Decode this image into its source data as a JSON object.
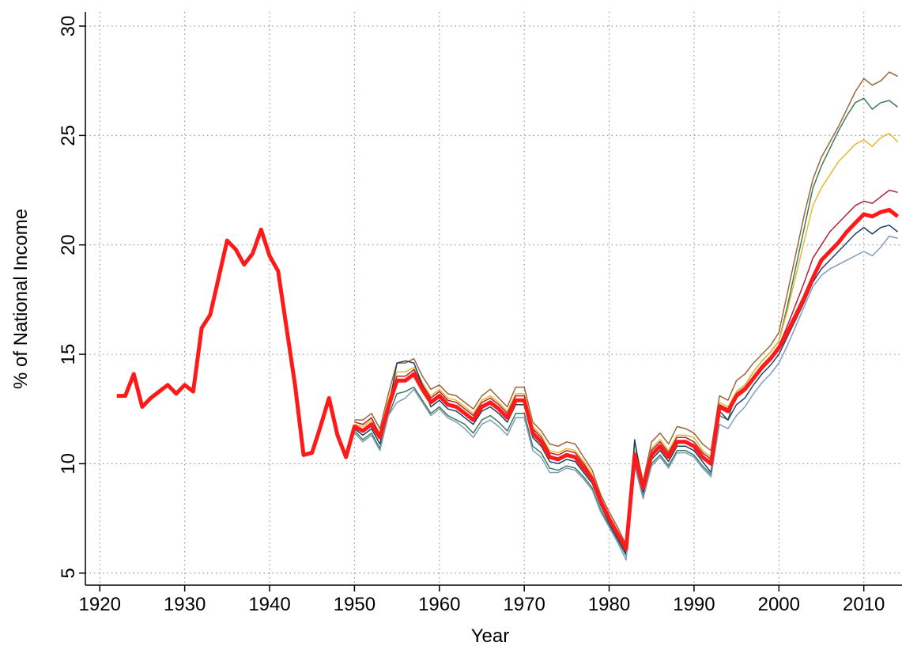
{
  "chart_data": {
    "type": "line",
    "x_label": "Year",
    "y_label": "% of National Income",
    "xlim": [
      1918.3,
      2014.5
    ],
    "ylim": [
      4.45,
      30.65
    ],
    "xticks": [
      1920,
      1930,
      1940,
      1950,
      1960,
      1970,
      1980,
      1990,
      2000,
      2010
    ],
    "yticks": [
      5,
      10,
      15,
      20,
      25,
      30
    ],
    "grid": true,
    "x": [
      1922,
      1923,
      1924,
      1925,
      1926,
      1927,
      1928,
      1929,
      1930,
      1931,
      1932,
      1933,
      1934,
      1935,
      1936,
      1937,
      1938,
      1939,
      1940,
      1941,
      1942,
      1943,
      1944,
      1945,
      1946,
      1947,
      1948,
      1949,
      1950,
      1951,
      1952,
      1953,
      1954,
      1955,
      1956,
      1957,
      1958,
      1959,
      1960,
      1961,
      1962,
      1963,
      1964,
      1965,
      1966,
      1967,
      1968,
      1969,
      1970,
      1971,
      1972,
      1973,
      1974,
      1975,
      1976,
      1977,
      1978,
      1979,
      1980,
      1981,
      1982,
      1983,
      1984,
      1985,
      1986,
      1987,
      1988,
      1989,
      1990,
      1991,
      1992,
      1993,
      1994,
      1995,
      1996,
      1997,
      1998,
      1999,
      2000,
      2001,
      2002,
      2003,
      2004,
      2005,
      2006,
      2007,
      2008,
      2009,
      2010,
      2011,
      2012,
      2013,
      2014
    ],
    "series": [
      {
        "color": "#a0653a",
        "linewidth": 1.5,
        "values": [
          null,
          null,
          null,
          null,
          null,
          null,
          null,
          null,
          null,
          null,
          null,
          null,
          null,
          null,
          null,
          null,
          null,
          null,
          null,
          null,
          null,
          null,
          null,
          null,
          null,
          null,
          null,
          null,
          12.0,
          12.0,
          12.3,
          11.6,
          13.2,
          14.6,
          14.6,
          14.8,
          14.0,
          13.4,
          13.6,
          13.2,
          13.1,
          12.8,
          12.5,
          13.1,
          13.4,
          13.0,
          12.6,
          13.5,
          13.5,
          11.9,
          11.5,
          10.9,
          10.8,
          11.0,
          10.9,
          10.3,
          9.7,
          8.6,
          7.8,
          7.1,
          6.3,
          11.0,
          9.2,
          11.0,
          11.4,
          10.9,
          11.7,
          11.6,
          11.4,
          10.9,
          10.6,
          13.1,
          12.9,
          13.8,
          14.1,
          14.6,
          15.0,
          15.4,
          16.0,
          17.8,
          19.6,
          21.4,
          23.0,
          24.0,
          24.7,
          25.4,
          26.2,
          27.0,
          27.6,
          27.3,
          27.5,
          27.9,
          27.7
        ]
      },
      {
        "color": "#3d7a5a",
        "linewidth": 1.5,
        "values": [
          null,
          null,
          null,
          null,
          null,
          null,
          null,
          null,
          null,
          null,
          null,
          null,
          null,
          null,
          null,
          null,
          null,
          null,
          null,
          null,
          null,
          null,
          null,
          null,
          null,
          null,
          null,
          null,
          11.5,
          11.1,
          11.4,
          10.7,
          12.2,
          13.2,
          13.3,
          13.5,
          12.9,
          12.3,
          12.6,
          12.2,
          12.0,
          11.8,
          11.4,
          12.0,
          12.2,
          11.9,
          11.5,
          12.3,
          12.3,
          10.8,
          10.5,
          9.8,
          9.7,
          9.9,
          9.8,
          9.4,
          8.9,
          7.9,
          7.2,
          6.5,
          5.8,
          10.0,
          8.5,
          10.0,
          10.4,
          9.9,
          10.6,
          10.6,
          10.4,
          9.9,
          9.5,
          12.2,
          12.0,
          13.3,
          13.6,
          14.2,
          14.7,
          15.1,
          15.6,
          17.2,
          19.0,
          20.8,
          22.6,
          23.6,
          24.4,
          25.2,
          25.9,
          26.5,
          26.7,
          26.2,
          26.5,
          26.6,
          26.3
        ]
      },
      {
        "color": "#e8b830",
        "linewidth": 1.5,
        "values": [
          null,
          null,
          null,
          null,
          null,
          null,
          null,
          null,
          null,
          null,
          null,
          null,
          null,
          null,
          null,
          null,
          null,
          null,
          null,
          null,
          null,
          null,
          null,
          null,
          null,
          null,
          null,
          null,
          11.8,
          11.7,
          12.0,
          11.4,
          12.9,
          14.2,
          14.2,
          14.4,
          13.7,
          13.1,
          13.4,
          13.0,
          12.9,
          12.6,
          12.3,
          12.9,
          13.1,
          12.8,
          12.4,
          13.2,
          13.2,
          11.7,
          11.3,
          10.6,
          10.5,
          10.7,
          10.6,
          10.1,
          9.5,
          8.4,
          7.6,
          6.9,
          6.2,
          10.6,
          9.0,
          10.7,
          11.1,
          10.6,
          11.3,
          11.3,
          11.2,
          10.6,
          10.3,
          12.8,
          12.6,
          13.3,
          13.6,
          14.2,
          14.7,
          15.1,
          15.6,
          17.0,
          18.6,
          20.2,
          21.8,
          22.6,
          23.2,
          23.8,
          24.2,
          24.6,
          24.8,
          24.5,
          24.9,
          25.1,
          24.7
        ]
      },
      {
        "color": "#b22234",
        "linewidth": 1.5,
        "values": [
          null,
          null,
          null,
          null,
          null,
          null,
          null,
          null,
          null,
          null,
          null,
          null,
          null,
          null,
          null,
          null,
          null,
          null,
          null,
          null,
          null,
          null,
          null,
          null,
          null,
          null,
          null,
          null,
          11.9,
          11.8,
          12.1,
          11.3,
          12.8,
          14.0,
          14.0,
          14.3,
          13.6,
          13.0,
          13.3,
          12.9,
          12.8,
          12.5,
          12.2,
          12.8,
          13.0,
          12.7,
          12.3,
          13.1,
          13.1,
          11.6,
          11.2,
          10.5,
          10.4,
          10.6,
          10.5,
          10.0,
          9.4,
          8.4,
          7.6,
          6.9,
          6.2,
          10.5,
          9.0,
          10.6,
          11.0,
          10.5,
          11.2,
          11.2,
          11.0,
          10.5,
          10.2,
          12.7,
          12.5,
          13.2,
          13.5,
          14.0,
          14.5,
          14.9,
          15.4,
          16.3,
          17.3,
          18.3,
          19.4,
          20.0,
          20.6,
          21.0,
          21.4,
          21.8,
          22.0,
          21.9,
          22.2,
          22.5,
          22.4
        ]
      },
      {
        "color": "#1f3f6b",
        "linewidth": 1.5,
        "values": [
          null,
          null,
          null,
          null,
          null,
          null,
          null,
          null,
          null,
          null,
          null,
          null,
          null,
          null,
          null,
          null,
          null,
          null,
          null,
          null,
          null,
          null,
          null,
          null,
          null,
          null,
          null,
          null,
          11.6,
          11.3,
          11.6,
          10.9,
          12.5,
          14.6,
          14.7,
          14.6,
          13.6,
          12.6,
          12.9,
          12.5,
          12.4,
          12.1,
          11.8,
          12.4,
          12.6,
          12.3,
          11.9,
          12.7,
          12.7,
          11.2,
          10.8,
          10.1,
          10.0,
          10.2,
          10.1,
          9.6,
          9.1,
          8.1,
          7.3,
          6.6,
          5.9,
          11.1,
          8.7,
          10.2,
          10.6,
          10.1,
          10.8,
          10.8,
          10.6,
          10.1,
          9.6,
          12.4,
          12.0,
          12.7,
          13.0,
          13.6,
          14.1,
          14.5,
          15.0,
          15.8,
          16.6,
          17.4,
          18.3,
          18.9,
          19.3,
          19.7,
          20.1,
          20.5,
          20.8,
          20.5,
          20.8,
          20.9,
          20.6
        ]
      },
      {
        "color": "#7f9cc0",
        "linewidth": 1.5,
        "values": [
          null,
          null,
          null,
          null,
          null,
          null,
          null,
          null,
          null,
          null,
          null,
          null,
          null,
          null,
          null,
          null,
          null,
          null,
          null,
          null,
          null,
          null,
          null,
          null,
          null,
          null,
          null,
          null,
          11.4,
          11.0,
          11.3,
          10.6,
          12.2,
          12.8,
          13.0,
          13.4,
          12.8,
          12.2,
          12.5,
          12.1,
          11.9,
          11.6,
          11.2,
          11.8,
          12.0,
          11.7,
          11.3,
          12.1,
          12.1,
          10.6,
          10.3,
          9.6,
          9.6,
          9.8,
          9.7,
          9.3,
          8.8,
          7.8,
          7.1,
          6.4,
          5.6,
          9.9,
          8.4,
          9.9,
          10.3,
          9.8,
          10.5,
          10.5,
          10.3,
          9.8,
          9.4,
          11.8,
          11.6,
          12.2,
          12.6,
          13.2,
          13.7,
          14.1,
          14.6,
          15.4,
          16.3,
          17.2,
          18.1,
          18.6,
          18.9,
          19.1,
          19.3,
          19.5,
          19.7,
          19.5,
          19.9,
          20.4,
          20.3
        ]
      },
      {
        "color": "#ff1a1a",
        "linewidth": 5,
        "values": [
          13.1,
          13.1,
          14.1,
          12.6,
          13.0,
          13.3,
          13.6,
          13.2,
          13.6,
          13.3,
          16.2,
          16.8,
          18.5,
          20.2,
          19.8,
          19.1,
          19.6,
          20.7,
          19.5,
          18.8,
          16.2,
          13.6,
          10.4,
          10.5,
          11.7,
          13.0,
          11.3,
          10.3,
          11.7,
          11.5,
          11.8,
          11.2,
          12.6,
          13.8,
          13.8,
          14.1,
          13.4,
          12.8,
          13.1,
          12.7,
          12.6,
          12.3,
          12.0,
          12.6,
          12.8,
          12.5,
          12.1,
          12.9,
          12.9,
          11.4,
          11.0,
          10.3,
          10.2,
          10.4,
          10.3,
          9.8,
          9.3,
          8.3,
          7.5,
          6.8,
          6.1,
          10.4,
          8.9,
          10.4,
          10.8,
          10.3,
          11.0,
          11.0,
          10.8,
          10.3,
          10.0,
          12.6,
          12.4,
          13.1,
          13.4,
          13.9,
          14.4,
          14.8,
          15.3,
          16.0,
          16.8,
          17.6,
          18.5,
          19.3,
          19.7,
          20.1,
          20.6,
          21.0,
          21.4,
          21.3,
          21.5,
          21.6,
          21.3
        ]
      }
    ]
  }
}
